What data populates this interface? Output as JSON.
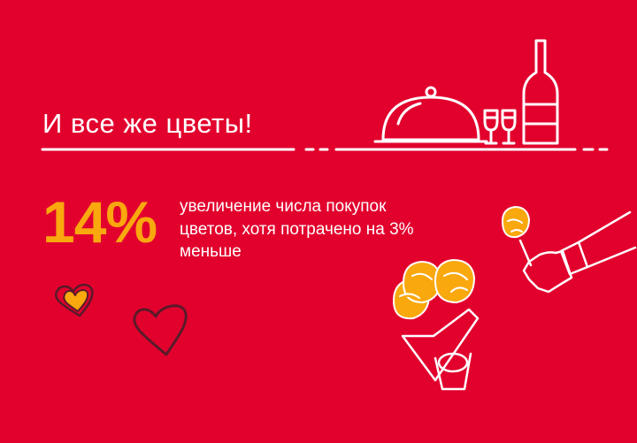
{
  "title": "И все же цветы!",
  "stat": {
    "value": "14%",
    "description_lines": [
      "увеличение числа покупок",
      "цветов, хотя потрачено на 3%",
      "меньше"
    ]
  },
  "colors": {
    "background": "#e2012d",
    "accent": "#f9a80e",
    "line": "#ffffff",
    "heart_outline": "#5a1a2a"
  },
  "icons": [
    "cloche-icon",
    "wine-glasses-icon",
    "wine-bottle-icon",
    "heart-icon",
    "rose-bouquet-icon",
    "hand-with-rose-icon"
  ]
}
